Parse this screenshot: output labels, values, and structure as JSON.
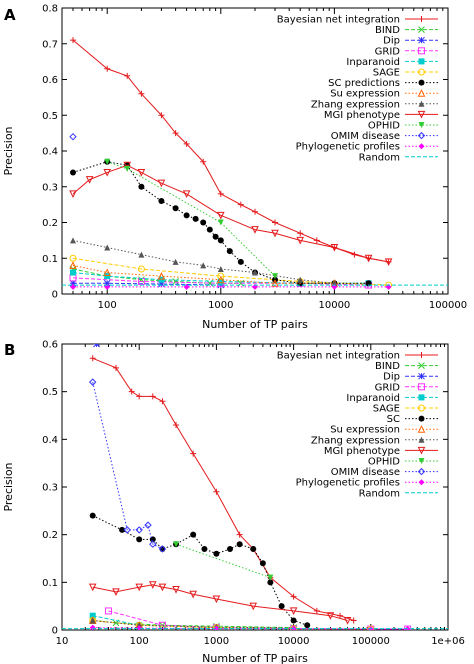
{
  "chart_data": [
    {
      "type": "line",
      "panel_label": "A",
      "xlabel": "Number of TP pairs",
      "ylabel": "Precision",
      "xscale": "log",
      "xlim": [
        40,
        100000
      ],
      "ylim": [
        0,
        0.8
      ],
      "xticks": [
        100,
        1000,
        10000,
        100000
      ],
      "xtick_labels": [
        "100",
        "1000",
        "10000",
        "100000"
      ],
      "yticks": [
        0,
        0.1,
        0.2,
        0.3,
        0.4,
        0.5,
        0.6,
        0.7,
        0.8
      ],
      "ytick_labels": [
        "0",
        "0.1",
        "0.2",
        "0.3",
        "0.4",
        "0.5",
        "0.6",
        "0.7",
        "0.8"
      ],
      "legend_position": "top-right",
      "grid": false,
      "series": [
        {
          "name": "Bayesian net integration",
          "color": "#e41a1c",
          "marker": "plus",
          "dash": "solid",
          "x": [
            50,
            100,
            150,
            200,
            300,
            400,
            500,
            700,
            1000,
            1500,
            2000,
            3000,
            5000,
            7000,
            10000,
            15000,
            20000,
            30000
          ],
          "y": [
            0.71,
            0.63,
            0.61,
            0.56,
            0.5,
            0.45,
            0.42,
            0.37,
            0.28,
            0.25,
            0.23,
            0.2,
            0.17,
            0.15,
            0.13,
            0.11,
            0.1,
            0.09
          ]
        },
        {
          "name": "BIND",
          "color": "#33cc33",
          "marker": "x",
          "dash": "dash",
          "x": [
            50,
            100,
            200,
            400,
            800,
            1500
          ],
          "y": [
            0.07,
            0.05,
            0.04,
            0.035,
            0.03,
            0.03
          ]
        },
        {
          "name": "Dip",
          "color": "#3333ff",
          "marker": "star",
          "dash": "dash",
          "x": [
            50,
            100,
            300,
            1000
          ],
          "y": [
            0.03,
            0.03,
            0.028,
            0.025
          ]
        },
        {
          "name": "GRID",
          "color": "#ff33ff",
          "marker": "square",
          "dash": "dash",
          "x": [
            50,
            200,
            1000,
            5000,
            20000
          ],
          "y": [
            0.045,
            0.035,
            0.03,
            0.03,
            0.025
          ]
        },
        {
          "name": "Inparanoid",
          "color": "#00cccc",
          "marker": "square-filled",
          "dash": "dash",
          "x": [
            50,
            100,
            300,
            1000,
            5000,
            20000
          ],
          "y": [
            0.06,
            0.05,
            0.04,
            0.035,
            0.03,
            0.03
          ]
        },
        {
          "name": "SAGE",
          "color": "#ffcc00",
          "marker": "circle",
          "dash": "dash",
          "x": [
            50,
            200,
            1000,
            5000,
            30000
          ],
          "y": [
            0.1,
            0.07,
            0.05,
            0.035,
            0.025
          ]
        },
        {
          "name": "SC predictions",
          "color": "#000000",
          "marker": "circle-filled",
          "dash": "dot",
          "x": [
            50,
            100,
            150,
            200,
            300,
            400,
            500,
            600,
            700,
            800,
            900,
            1000,
            1200,
            1500,
            2000,
            3000,
            5000,
            10000,
            20000
          ],
          "y": [
            0.34,
            0.37,
            0.36,
            0.3,
            0.26,
            0.24,
            0.22,
            0.21,
            0.2,
            0.18,
            0.16,
            0.15,
            0.12,
            0.09,
            0.06,
            0.04,
            0.03,
            0.03,
            0.03
          ]
        },
        {
          "name": "Su expression",
          "color": "#ff6600",
          "marker": "triangle",
          "dash": "dot",
          "x": [
            50,
            100,
            300,
            1000,
            3000,
            10000
          ],
          "y": [
            0.08,
            0.06,
            0.05,
            0.04,
            0.03,
            0.03
          ]
        },
        {
          "name": "Zhang expression",
          "color": "#555555",
          "marker": "triangle-filled",
          "dash": "dot",
          "x": [
            50,
            100,
            200,
            400,
            700,
            1000,
            2000,
            5000,
            10000
          ],
          "y": [
            0.15,
            0.13,
            0.11,
            0.09,
            0.08,
            0.07,
            0.06,
            0.04,
            0.03
          ]
        },
        {
          "name": "MGI phenotype",
          "color": "#e41a1c",
          "marker": "triangle-down",
          "dash": "solid",
          "x": [
            50,
            70,
            100,
            150,
            200,
            300,
            500,
            1000,
            2000,
            3000,
            5000,
            10000,
            20000,
            30000
          ],
          "y": [
            0.28,
            0.32,
            0.34,
            0.36,
            0.34,
            0.31,
            0.28,
            0.22,
            0.18,
            0.17,
            0.15,
            0.13,
            0.1,
            0.09
          ]
        },
        {
          "name": "OPHID",
          "color": "#33cc33",
          "marker": "triangle-down-filled",
          "dash": "dot",
          "x": [
            100,
            150,
            1000,
            3000
          ],
          "y": [
            0.37,
            0.35,
            0.2,
            0.05
          ]
        },
        {
          "name": "OMIM disease",
          "color": "#3333ff",
          "marker": "diamond",
          "dash": "dot",
          "x": [
            50
          ],
          "y": [
            0.44
          ]
        },
        {
          "name": "Phylogenetic profiles",
          "color": "#ff00ff",
          "marker": "diamond-filled",
          "dash": "dot",
          "x": [
            50,
            100,
            500,
            2000,
            10000,
            30000
          ],
          "y": [
            0.02,
            0.02,
            0.02,
            0.02,
            0.02,
            0.02
          ]
        },
        {
          "name": "Random",
          "color": "#00cccc",
          "marker": "none",
          "dash": "dash",
          "x": [
            40,
            100000
          ],
          "y": [
            0.025,
            0.025
          ]
        }
      ]
    },
    {
      "type": "line",
      "panel_label": "B",
      "xlabel": "Number of TP pairs",
      "ylabel": "Precision",
      "xscale": "log",
      "xlim": [
        10,
        1000000
      ],
      "ylim": [
        0,
        0.6
      ],
      "xticks": [
        10,
        100,
        1000,
        10000,
        100000,
        1000000
      ],
      "xtick_labels": [
        "10",
        "100",
        "1000",
        "10000",
        "100000",
        "1e+06"
      ],
      "yticks": [
        0,
        0.1,
        0.2,
        0.3,
        0.4,
        0.5,
        0.6
      ],
      "ytick_labels": [
        "0",
        "0.1",
        "0.2",
        "0.3",
        "0.4",
        "0.5",
        "0.6"
      ],
      "legend_position": "top-right",
      "grid": false,
      "series": [
        {
          "name": "Bayesian net integration",
          "color": "#e41a1c",
          "marker": "plus",
          "dash": "solid",
          "x": [
            25,
            50,
            80,
            100,
            150,
            200,
            300,
            500,
            1000,
            2000,
            3000,
            5000,
            10000,
            20000,
            40000,
            60000
          ],
          "y": [
            0.57,
            0.55,
            0.5,
            0.49,
            0.49,
            0.48,
            0.43,
            0.37,
            0.29,
            0.2,
            0.17,
            0.11,
            0.07,
            0.04,
            0.03,
            0.02
          ]
        },
        {
          "name": "BIND",
          "color": "#33cc33",
          "marker": "x",
          "dash": "dash",
          "x": [
            25,
            50,
            200,
            1000,
            10000
          ],
          "y": [
            0.02,
            0.015,
            0.01,
            0.008,
            0.005
          ]
        },
        {
          "name": "Dip",
          "color": "#3333ff",
          "marker": "star",
          "dash": "dash",
          "x": [
            28
          ],
          "y": [
            0.6
          ]
        },
        {
          "name": "GRID",
          "color": "#ff33ff",
          "marker": "square",
          "dash": "dash",
          "x": [
            40,
            200,
            1000,
            10000,
            100000,
            300000
          ],
          "y": [
            0.04,
            0.01,
            0.005,
            0.003,
            0.002,
            0.002
          ]
        },
        {
          "name": "Inparanoid",
          "color": "#00cccc",
          "marker": "square-filled",
          "dash": "dash",
          "x": [
            25,
            100,
            1000,
            10000
          ],
          "y": [
            0.03,
            0.01,
            0.005,
            0.003
          ]
        },
        {
          "name": "SAGE",
          "color": "#ffcc00",
          "marker": "circle",
          "dash": "dash",
          "x": [
            25,
            100,
            1000,
            10000,
            100000
          ],
          "y": [
            0.02,
            0.01,
            0.005,
            0.003,
            0.002
          ]
        },
        {
          "name": "SC",
          "color": "#000000",
          "marker": "circle-filled",
          "dash": "dot",
          "x": [
            25,
            60,
            100,
            150,
            200,
            300,
            500,
            700,
            1000,
            1500,
            2000,
            3000,
            4000,
            5000,
            7000,
            10000,
            15000
          ],
          "y": [
            0.24,
            0.21,
            0.19,
            0.19,
            0.17,
            0.18,
            0.2,
            0.17,
            0.16,
            0.17,
            0.18,
            0.17,
            0.14,
            0.1,
            0.05,
            0.02,
            0.01
          ]
        },
        {
          "name": "Su expression",
          "color": "#ff6600",
          "marker": "triangle",
          "dash": "dot",
          "x": [
            25,
            100,
            1000,
            10000
          ],
          "y": [
            0.02,
            0.01,
            0.005,
            0.003
          ]
        },
        {
          "name": "Zhang expression",
          "color": "#555555",
          "marker": "triangle-filled",
          "dash": "dot",
          "x": [
            25,
            100,
            1000,
            10000
          ],
          "y": [
            0.02,
            0.01,
            0.006,
            0.004
          ]
        },
        {
          "name": "MGI phenotype",
          "color": "#e41a1c",
          "marker": "triangle-down",
          "dash": "solid",
          "x": [
            25,
            50,
            100,
            150,
            200,
            300,
            500,
            1000,
            3000,
            10000,
            30000,
            50000
          ],
          "y": [
            0.09,
            0.08,
            0.09,
            0.095,
            0.09,
            0.085,
            0.075,
            0.065,
            0.05,
            0.04,
            0.03,
            0.02
          ]
        },
        {
          "name": "OPHID",
          "color": "#33cc33",
          "marker": "triangle-down-filled",
          "dash": "dot",
          "x": [
            300,
            5000
          ],
          "y": [
            0.18,
            0.11
          ]
        },
        {
          "name": "OMIM disease",
          "color": "#3333ff",
          "marker": "diamond",
          "dash": "dot",
          "x": [
            25,
            70,
            100,
            130,
            150,
            200
          ],
          "y": [
            0.52,
            0.21,
            0.21,
            0.22,
            0.18,
            0.17
          ]
        },
        {
          "name": "Phylogenetic profiles",
          "color": "#ff00ff",
          "marker": "diamond-filled",
          "dash": "dot",
          "x": [
            25,
            100,
            1000,
            10000,
            100000,
            300000
          ],
          "y": [
            0.005,
            0.004,
            0.003,
            0.003,
            0.002,
            0.002
          ]
        },
        {
          "name": "Random",
          "color": "#00cccc",
          "marker": "none",
          "dash": "dash",
          "x": [
            10,
            1000000
          ],
          "y": [
            0.003,
            0.003
          ]
        }
      ]
    }
  ]
}
